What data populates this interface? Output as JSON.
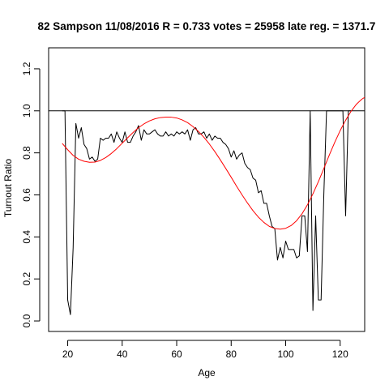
{
  "chart_data": {
    "type": "line",
    "title": "82 Sampson 11/08/2016 R = 0.733 votes = 25958 late reg. = 1371.7",
    "xlabel": "Age",
    "ylabel": "Turnout Ratio",
    "xlim": [
      13,
      129
    ],
    "ylim": [
      -0.05,
      1.3
    ],
    "x_ticks": [
      20,
      40,
      60,
      80,
      100,
      120
    ],
    "x_tick_labels": [
      "20",
      "40",
      "60",
      "80",
      "100",
      "120"
    ],
    "y_ticks": [
      0.0,
      0.2,
      0.4,
      0.6,
      0.8,
      1.0,
      1.2
    ],
    "y_tick_labels": [
      "0.0",
      "0.2",
      "0.4",
      "0.6",
      "0.8",
      "1.0",
      "1.2"
    ],
    "reference_line": {
      "y": 1.0,
      "color": "#000000"
    },
    "series": [
      {
        "kind": "observed",
        "color": "#000000",
        "points": [
          [
            18,
            1.0
          ],
          [
            19,
            1.0
          ],
          [
            20,
            0.1
          ],
          [
            21,
            0.03
          ],
          [
            22,
            0.35
          ],
          [
            23,
            0.94
          ],
          [
            24,
            0.87
          ],
          [
            25,
            0.92
          ],
          [
            26,
            0.84
          ],
          [
            27,
            0.82
          ],
          [
            28,
            0.77
          ],
          [
            29,
            0.78
          ],
          [
            30,
            0.76
          ],
          [
            31,
            0.77
          ],
          [
            32,
            0.87
          ],
          [
            33,
            0.86
          ],
          [
            34,
            0.87
          ],
          [
            35,
            0.87
          ],
          [
            36,
            0.89
          ],
          [
            37,
            0.85
          ],
          [
            38,
            0.9
          ],
          [
            39,
            0.87
          ],
          [
            40,
            0.85
          ],
          [
            41,
            0.9
          ],
          [
            42,
            0.85
          ],
          [
            43,
            0.85
          ],
          [
            44,
            0.88
          ],
          [
            45,
            0.9
          ],
          [
            46,
            0.93
          ],
          [
            47,
            0.86
          ],
          [
            48,
            0.91
          ],
          [
            49,
            0.89
          ],
          [
            50,
            0.89
          ],
          [
            51,
            0.9
          ],
          [
            52,
            0.91
          ],
          [
            53,
            0.89
          ],
          [
            54,
            0.88
          ],
          [
            55,
            0.88
          ],
          [
            56,
            0.9
          ],
          [
            57,
            0.88
          ],
          [
            58,
            0.89
          ],
          [
            59,
            0.88
          ],
          [
            60,
            0.9
          ],
          [
            61,
            0.89
          ],
          [
            62,
            0.9
          ],
          [
            63,
            0.89
          ],
          [
            64,
            0.91
          ],
          [
            65,
            0.86
          ],
          [
            66,
            0.91
          ],
          [
            67,
            0.92
          ],
          [
            68,
            0.89
          ],
          [
            69,
            0.89
          ],
          [
            70,
            0.9
          ],
          [
            71,
            0.87
          ],
          [
            72,
            0.89
          ],
          [
            73,
            0.86
          ],
          [
            74,
            0.88
          ],
          [
            75,
            0.87
          ],
          [
            76,
            0.87
          ],
          [
            77,
            0.85
          ],
          [
            78,
            0.84
          ],
          [
            79,
            0.82
          ],
          [
            80,
            0.78
          ],
          [
            81,
            0.81
          ],
          [
            82,
            0.77
          ],
          [
            83,
            0.79
          ],
          [
            84,
            0.8
          ],
          [
            85,
            0.75
          ],
          [
            86,
            0.73
          ],
          [
            87,
            0.72
          ],
          [
            88,
            0.68
          ],
          [
            89,
            0.67
          ],
          [
            90,
            0.61
          ],
          [
            91,
            0.62
          ],
          [
            92,
            0.56
          ],
          [
            93,
            0.56
          ],
          [
            94,
            0.5
          ],
          [
            95,
            0.45
          ],
          [
            96,
            0.44
          ],
          [
            97,
            0.29
          ],
          [
            98,
            0.35
          ],
          [
            99,
            0.3
          ],
          [
            100,
            0.38
          ],
          [
            101,
            0.34
          ],
          [
            102,
            0.34
          ],
          [
            103,
            0.34
          ],
          [
            104,
            0.3
          ],
          [
            105,
            0.31
          ],
          [
            106,
            0.5
          ],
          [
            107,
            0.5
          ],
          [
            108,
            0.33
          ],
          [
            109,
            1.0
          ],
          [
            110,
            0.05
          ],
          [
            111,
            0.5
          ],
          [
            112,
            0.1
          ],
          [
            113,
            0.1
          ],
          [
            114,
            0.6
          ],
          [
            115,
            1.0
          ],
          [
            116,
            1.0
          ],
          [
            117,
            1.0
          ],
          [
            118,
            1.0
          ],
          [
            119,
            1.0
          ],
          [
            120,
            1.0
          ],
          [
            121,
            1.0
          ],
          [
            122,
            0.5
          ],
          [
            123,
            1.0
          ],
          [
            124,
            1.0
          ]
        ]
      },
      {
        "kind": "fit",
        "color": "#ff0000",
        "points": [
          [
            18,
            0.845
          ],
          [
            20,
            0.815
          ],
          [
            22,
            0.788
          ],
          [
            24,
            0.77
          ],
          [
            26,
            0.76
          ],
          [
            28,
            0.755
          ],
          [
            30,
            0.756
          ],
          [
            32,
            0.764
          ],
          [
            34,
            0.778
          ],
          [
            36,
            0.797
          ],
          [
            38,
            0.82
          ],
          [
            40,
            0.846
          ],
          [
            42,
            0.872
          ],
          [
            44,
            0.897
          ],
          [
            46,
            0.92
          ],
          [
            48,
            0.938
          ],
          [
            50,
            0.952
          ],
          [
            52,
            0.962
          ],
          [
            54,
            0.968
          ],
          [
            56,
            0.97
          ],
          [
            58,
            0.97
          ],
          [
            60,
            0.966
          ],
          [
            62,
            0.957
          ],
          [
            64,
            0.944
          ],
          [
            66,
            0.925
          ],
          [
            68,
            0.902
          ],
          [
            70,
            0.874
          ],
          [
            72,
            0.842
          ],
          [
            74,
            0.806
          ],
          [
            76,
            0.767
          ],
          [
            78,
            0.726
          ],
          [
            80,
            0.684
          ],
          [
            82,
            0.641
          ],
          [
            84,
            0.6
          ],
          [
            86,
            0.561
          ],
          [
            88,
            0.525
          ],
          [
            90,
            0.494
          ],
          [
            92,
            0.469
          ],
          [
            94,
            0.45
          ],
          [
            96,
            0.44
          ],
          [
            98,
            0.437
          ],
          [
            100,
            0.441
          ],
          [
            102,
            0.454
          ],
          [
            104,
            0.477
          ],
          [
            106,
            0.51
          ],
          [
            108,
            0.553
          ],
          [
            110,
            0.605
          ],
          [
            112,
            0.663
          ],
          [
            114,
            0.725
          ],
          [
            116,
            0.789
          ],
          [
            118,
            0.85
          ],
          [
            120,
            0.906
          ],
          [
            122,
            0.955
          ],
          [
            124,
            0.998
          ],
          [
            126,
            1.032
          ],
          [
            128,
            1.056
          ],
          [
            129,
            1.064
          ]
        ]
      }
    ]
  }
}
